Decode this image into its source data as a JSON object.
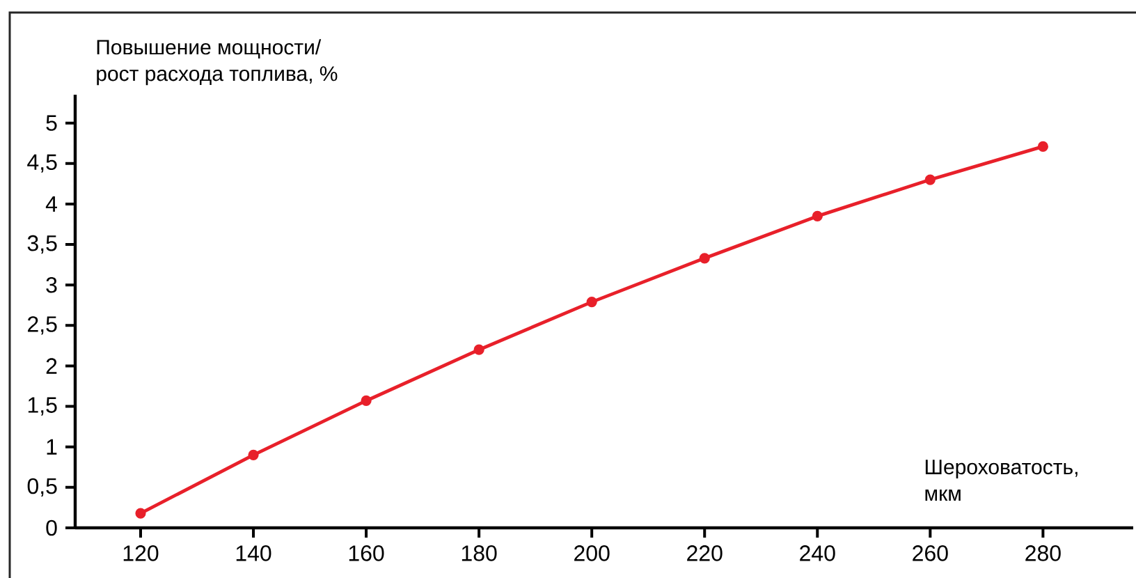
{
  "chart_data": {
    "type": "line",
    "xlabel": "Шероховатость,\nмкм",
    "ylabel": "Повышение мощности/\nрост расхода топлива, %",
    "x": [
      120,
      140,
      160,
      180,
      200,
      220,
      240,
      260,
      280
    ],
    "series": [
      {
        "color": "#e8202a",
        "values": [
          0.18,
          0.9,
          1.57,
          2.2,
          2.79,
          3.33,
          3.85,
          4.3,
          4.71
        ]
      }
    ],
    "xlim": [
      108.4,
      296
    ],
    "ylim": [
      0,
      5.35
    ],
    "xticks": [
      120,
      140,
      160,
      180,
      200,
      220,
      240,
      260,
      280
    ],
    "yticks": [
      0,
      {
        "value": 0.5,
        "label": "0,5"
      },
      1,
      {
        "value": 1.5,
        "label": "1,5"
      },
      2,
      {
        "value": 2.5,
        "label": "2,5"
      },
      3,
      {
        "value": 3.5,
        "label": "3,5"
      },
      4,
      {
        "value": 4.5,
        "label": "4,5"
      },
      5
    ],
    "grid": false,
    "marker": "circle",
    "line_style": "solid"
  }
}
